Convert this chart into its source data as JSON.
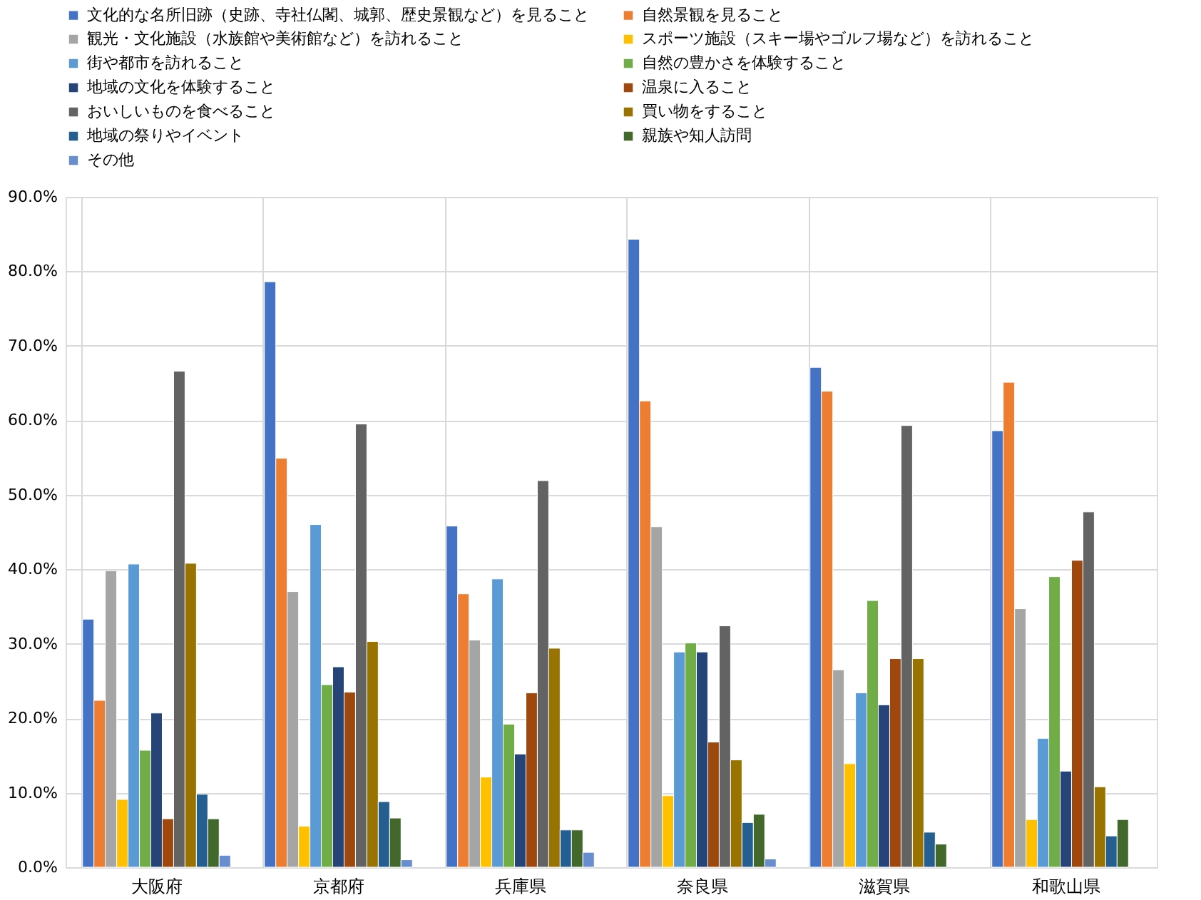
{
  "chart_data": {
    "type": "bar",
    "categories": [
      "大阪府",
      "京都府",
      "兵庫県",
      "奈良県",
      "滋賀県",
      "和歌山県"
    ],
    "series": [
      {
        "name": "文化的な名所旧跡（史跡、寺社仏閣、城郭、歴史景観など）を見ること",
        "color": "#4472c4",
        "values": [
          33.3,
          78.6,
          45.8,
          84.3,
          67.1,
          58.6
        ]
      },
      {
        "name": "自然景観を見ること",
        "color": "#ed7d31",
        "values": [
          22.4,
          54.9,
          36.7,
          62.6,
          63.9,
          65.1
        ]
      },
      {
        "name": "観光・文化施設（水族館や美術館など）を訪れること",
        "color": "#a5a5a5",
        "values": [
          39.8,
          37.0,
          30.5,
          45.7,
          26.5,
          34.7
        ]
      },
      {
        "name": "スポーツ施設（スキー場やゴルフ場など）を訪れること",
        "color": "#ffc000",
        "values": [
          9.1,
          5.5,
          12.1,
          9.6,
          13.9,
          6.4
        ]
      },
      {
        "name": "街や都市を訪れること",
        "color": "#5b9bd5",
        "values": [
          40.7,
          46.0,
          38.7,
          28.9,
          23.4,
          17.3
        ]
      },
      {
        "name": "自然の豊かさを体験すること",
        "color": "#70ad47",
        "values": [
          15.7,
          24.5,
          19.2,
          30.1,
          35.8,
          39.0
        ]
      },
      {
        "name": "地域の文化を体験すること",
        "color": "#264478",
        "values": [
          20.7,
          26.9,
          15.2,
          28.9,
          21.8,
          12.9
        ]
      },
      {
        "name": "温泉に入ること",
        "color": "#9e480e",
        "values": [
          6.5,
          23.5,
          23.4,
          16.8,
          28.0,
          41.2
        ]
      },
      {
        "name": "おいしいものを食べること",
        "color": "#636363",
        "values": [
          66.6,
          59.5,
          51.9,
          32.4,
          59.3,
          47.7
        ]
      },
      {
        "name": "買い物をすること",
        "color": "#997300",
        "values": [
          40.8,
          30.3,
          29.4,
          14.4,
          28.0,
          10.8
        ]
      },
      {
        "name": "地域の祭りやイベント",
        "color": "#255e91",
        "values": [
          9.8,
          8.8,
          5.0,
          6.0,
          4.7,
          4.2
        ]
      },
      {
        "name": "親族や知人訪問",
        "color": "#43682b",
        "values": [
          6.5,
          6.6,
          5.0,
          7.1,
          3.1,
          6.4
        ]
      },
      {
        "name": "その他",
        "color": "#698ed0",
        "values": [
          1.6,
          1.0,
          2.0,
          1.1,
          null,
          null
        ]
      }
    ],
    "ylim": [
      0,
      90
    ],
    "yticks": [
      {
        "value": 0,
        "label": "0.0%"
      },
      {
        "value": 10,
        "label": "10.0%"
      },
      {
        "value": 20,
        "label": "20.0%"
      },
      {
        "value": 30,
        "label": "30.0%"
      },
      {
        "value": 40,
        "label": "40.0%"
      },
      {
        "value": 50,
        "label": "50.0%"
      },
      {
        "value": 60,
        "label": "60.0%"
      },
      {
        "value": 70,
        "label": "70.0%"
      },
      {
        "value": 80,
        "label": "80.0%"
      },
      {
        "value": 90,
        "label": "90.0%"
      }
    ],
    "grid": true,
    "legend": "top"
  }
}
